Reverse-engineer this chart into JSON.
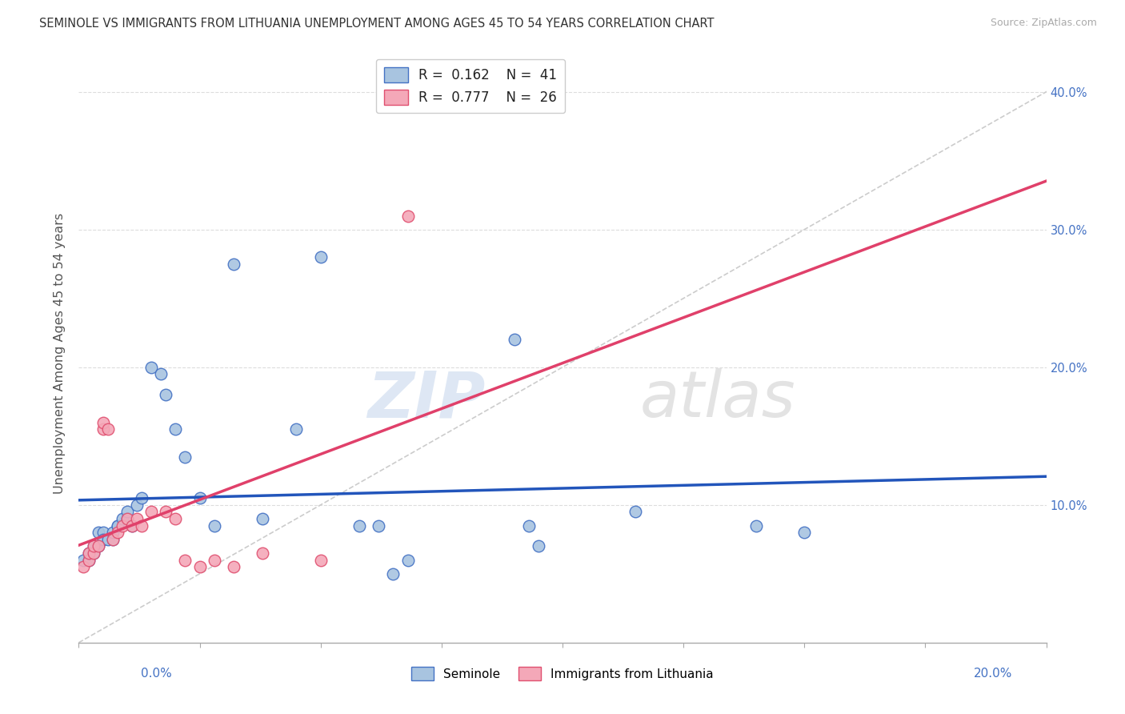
{
  "title": "SEMINOLE VS IMMIGRANTS FROM LITHUANIA UNEMPLOYMENT AMONG AGES 45 TO 54 YEARS CORRELATION CHART",
  "source": "Source: ZipAtlas.com",
  "ylabel": "Unemployment Among Ages 45 to 54 years",
  "xlim": [
    0.0,
    0.2
  ],
  "ylim": [
    0.0,
    0.42
  ],
  "watermark_zip": "ZIP",
  "watermark_atlas": "atlas",
  "color_seminole_fill": "#a8c4e0",
  "color_seminole_edge": "#4472c4",
  "color_lithuania_fill": "#f4a8b8",
  "color_lithuania_edge": "#e05070",
  "color_line_seminole": "#2255bb",
  "color_line_lithuania": "#e0406a",
  "color_line_diag": "#cccccc",
  "color_grid": "#dddddd",
  "color_ytick": "#4472c4",
  "seminole_x": [
    0.001,
    0.002,
    0.002,
    0.003,
    0.003,
    0.004,
    0.004,
    0.005,
    0.005,
    0.006,
    0.007,
    0.007,
    0.008,
    0.008,
    0.009,
    0.01,
    0.01,
    0.011,
    0.012,
    0.013,
    0.015,
    0.017,
    0.018,
    0.02,
    0.022,
    0.025,
    0.028,
    0.032,
    0.038,
    0.045,
    0.05,
    0.058,
    0.062,
    0.065,
    0.068,
    0.09,
    0.093,
    0.095,
    0.115,
    0.14,
    0.15
  ],
  "seminole_y": [
    0.06,
    0.06,
    0.065,
    0.065,
    0.07,
    0.07,
    0.08,
    0.08,
    0.075,
    0.075,
    0.075,
    0.08,
    0.085,
    0.085,
    0.09,
    0.09,
    0.095,
    0.085,
    0.1,
    0.105,
    0.2,
    0.195,
    0.18,
    0.155,
    0.135,
    0.105,
    0.085,
    0.275,
    0.09,
    0.155,
    0.28,
    0.085,
    0.085,
    0.05,
    0.06,
    0.22,
    0.085,
    0.07,
    0.095,
    0.085,
    0.08
  ],
  "lithuania_x": [
    0.001,
    0.002,
    0.002,
    0.003,
    0.003,
    0.004,
    0.005,
    0.005,
    0.006,
    0.007,
    0.008,
    0.009,
    0.01,
    0.011,
    0.012,
    0.013,
    0.015,
    0.018,
    0.02,
    0.022,
    0.025,
    0.028,
    0.032,
    0.038,
    0.05,
    0.068
  ],
  "lithuania_y": [
    0.055,
    0.06,
    0.065,
    0.065,
    0.07,
    0.07,
    0.155,
    0.16,
    0.155,
    0.075,
    0.08,
    0.085,
    0.09,
    0.085,
    0.09,
    0.085,
    0.095,
    0.095,
    0.09,
    0.06,
    0.055,
    0.06,
    0.055,
    0.065,
    0.06,
    0.31
  ]
}
